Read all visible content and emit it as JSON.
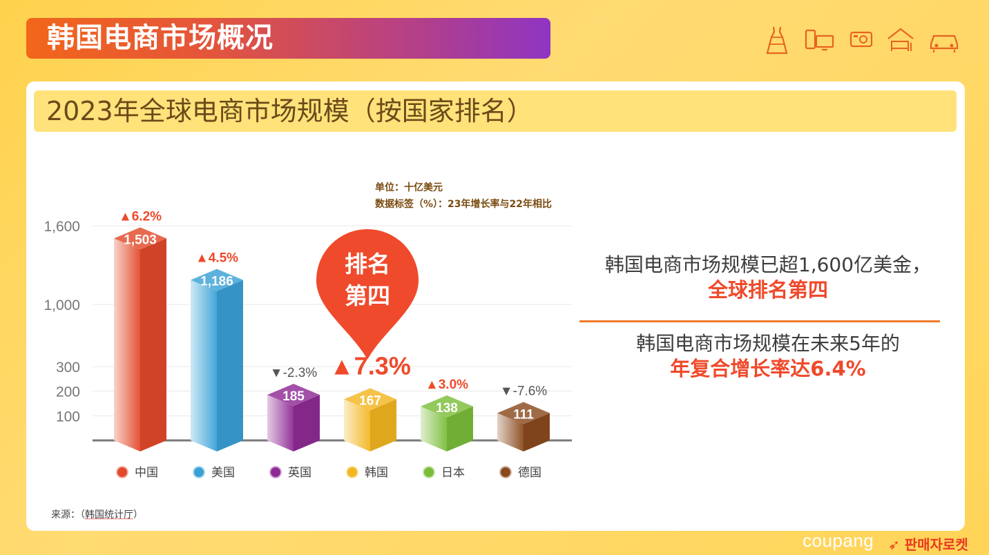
{
  "header": {
    "title": "韩国电商市场概况"
  },
  "category_icons": [
    "dress-icon",
    "devices-icon",
    "camera-icon",
    "home-furniture-icon",
    "car-icon"
  ],
  "section": {
    "title": "2023年全球电商市场规模（按国家排名）"
  },
  "notes": {
    "unit": "单位：十亿美元",
    "label_note": "数据标签（%）：23年增长率与22年相比"
  },
  "source": {
    "prefix": "来源：（",
    "name": "韩国统计厅",
    "suffix": "）"
  },
  "callout": {
    "line1": "排名",
    "line2": "第四"
  },
  "summary": {
    "line1": "韩国电商市场规模已超1,600亿美金，",
    "highlight1": "全球排名第四",
    "line2": "韩国电商市场规模在未来5年的",
    "highlight2": "年复合增长率达6.4%"
  },
  "footer": {
    "brand": "coupang",
    "tagline": "판매자로켓"
  },
  "colors": {
    "up": "#ef4a2b",
    "down": "#555555",
    "accent": "#ef4a2b"
  },
  "chart_data": {
    "type": "bar",
    "ytick_labels": [
      "100",
      "200",
      "300",
      "1,000",
      "1,600"
    ],
    "categories": [
      "中国",
      "美国",
      "英国",
      "韩国",
      "日本",
      "德国"
    ],
    "values": [
      1503,
      1186,
      185,
      167,
      138,
      111
    ],
    "value_labels": [
      "1,503",
      "1,186",
      "185",
      "167",
      "138",
      "111"
    ],
    "growth_labels": [
      "▲6.2%",
      "▲4.5%",
      "▼-2.3%",
      "▲7.3%",
      "▲3.0%",
      "▼-7.6%"
    ],
    "growth": [
      6.2,
      4.5,
      -2.3,
      7.3,
      3.0,
      -7.6
    ],
    "colors": [
      "#e2492a",
      "#3aa1d6",
      "#8e2a95",
      "#f2b620",
      "#7bbd3a",
      "#8a4a1e"
    ]
  }
}
